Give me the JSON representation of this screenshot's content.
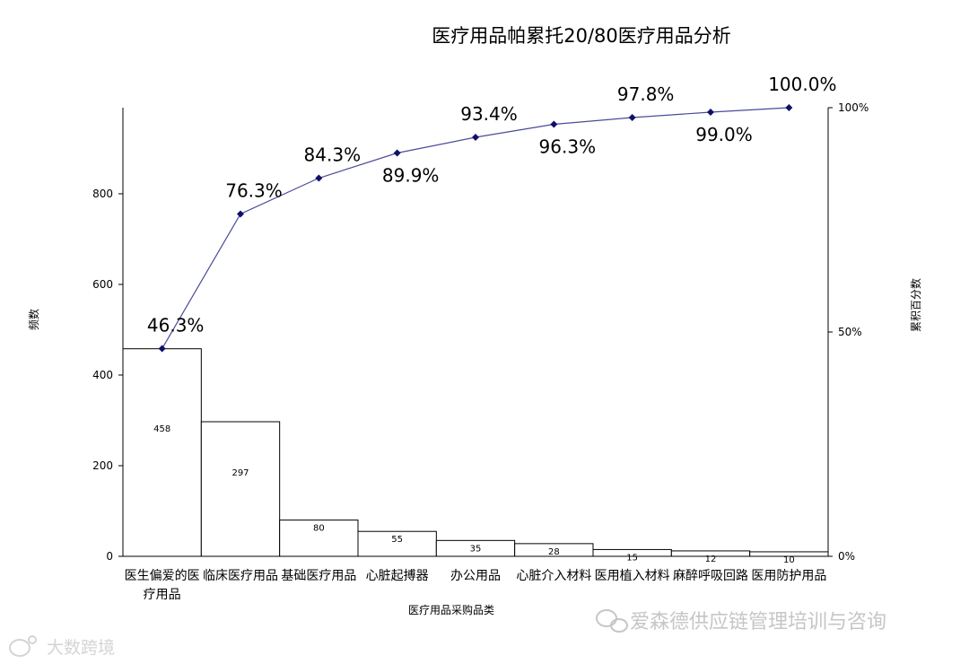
{
  "chart_data": {
    "type": "bar",
    "title": "医疗用品帕累托20/80医疗用品分析",
    "xlabel": "医疗用品采购品类",
    "ylabel": "频数",
    "y2label": "累积百分数",
    "categories": [
      "医生偏爱的医疗用品",
      "临床医疗用品",
      "基础医疗用品",
      "心脏起搏器",
      "办公用品",
      "心脏介入材料",
      "医用植入材料",
      "麻醉呼吸回路",
      "医用防护用品"
    ],
    "values": [
      458,
      297,
      80,
      55,
      35,
      28,
      15,
      12,
      10
    ],
    "bar_labels": [
      "458",
      "297",
      "80",
      "55",
      "35",
      "28",
      "15",
      "12",
      "10"
    ],
    "cumulative": [
      46.3,
      76.3,
      84.3,
      89.9,
      93.4,
      96.3,
      97.8,
      99.0,
      100.0
    ],
    "cumulative_labels": [
      "46.3%",
      "76.3%",
      "84.3%",
      "89.9%",
      "93.4%",
      "96.3%",
      "97.8%",
      "99.0%",
      "100.0%"
    ],
    "ylim": [
      0,
      990
    ],
    "yticks": [
      0,
      200,
      400,
      600,
      800
    ],
    "y2lim": [
      0,
      100
    ],
    "y2ticks": [
      "0%",
      "50%",
      "100%"
    ],
    "line_color": "#4a4a9a",
    "marker_color": "#10106a",
    "bar_fill": "#ffffff",
    "bar_stroke": "#000000",
    "grid": false
  },
  "watermark": {
    "brand": "爱森德供应链管理培训与咨询",
    "corner": "大数跨境"
  }
}
